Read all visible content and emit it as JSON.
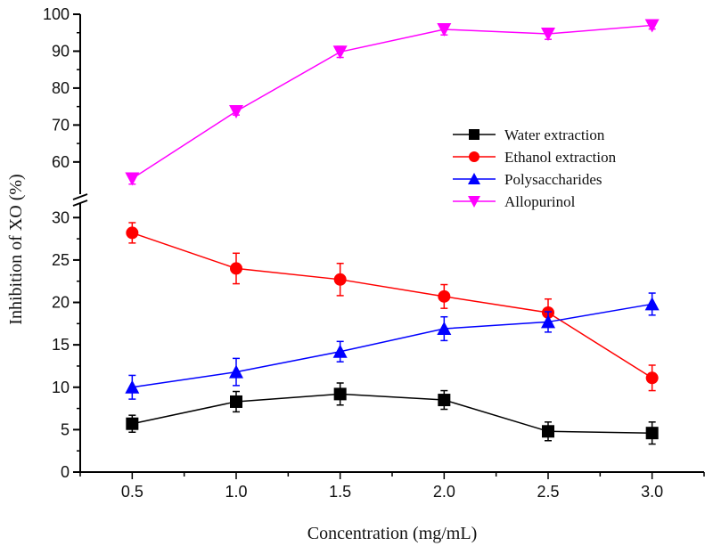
{
  "chart_data": {
    "type": "line",
    "xlabel": "Concentration (mg/mL)",
    "ylabel": "Inhibition of XO (%)",
    "x": [
      0.5,
      1.0,
      1.5,
      2.0,
      2.5,
      3.0
    ],
    "x_tick_labels": [
      "0.5",
      "1.0",
      "1.5",
      "2.0",
      "2.5",
      "3.0"
    ],
    "xlim": [
      0.25,
      3.25
    ],
    "y_axis_break": true,
    "ylim_lower": [
      0,
      31.5
    ],
    "ylim_upper": [
      52,
      100
    ],
    "y_tick_labels_lower": [
      "0",
      "5",
      "10",
      "15",
      "20",
      "25",
      "30"
    ],
    "y_tick_labels_upper": [
      "60",
      "70",
      "80",
      "90",
      "100"
    ],
    "legend_position": "right",
    "grid": false,
    "series": [
      {
        "name": "Water extraction",
        "color": "#000000",
        "marker": "square",
        "values": [
          5.7,
          8.3,
          9.2,
          8.5,
          4.8,
          4.6
        ],
        "errors": [
          1.0,
          1.2,
          1.3,
          1.1,
          1.1,
          1.3
        ]
      },
      {
        "name": "Ethanol extraction",
        "color": "#ff0000",
        "marker": "circle",
        "values": [
          28.2,
          24.0,
          22.7,
          20.7,
          18.8,
          11.1
        ],
        "errors": [
          1.2,
          1.8,
          1.9,
          1.4,
          1.6,
          1.5
        ]
      },
      {
        "name": "Polysaccharides",
        "color": "#0000ff",
        "marker": "triangle-up",
        "values": [
          10.0,
          11.8,
          14.2,
          16.9,
          17.7,
          19.8
        ],
        "errors": [
          1.4,
          1.6,
          1.2,
          1.4,
          1.2,
          1.3
        ]
      },
      {
        "name": "Allopurinol",
        "color": "#ff00ff",
        "marker": "triangle-down",
        "values": [
          55.5,
          73.7,
          89.8,
          95.9,
          94.7,
          97.0
        ],
        "errors": [
          1.5,
          1.0,
          1.5,
          1.5,
          1.5,
          1.0
        ]
      }
    ]
  }
}
